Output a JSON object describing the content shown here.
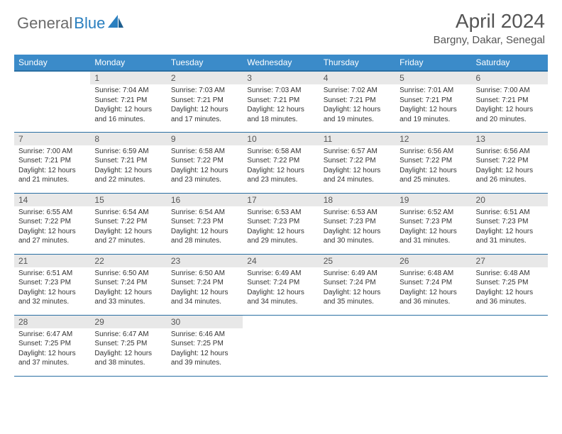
{
  "logo": {
    "text1": "General",
    "text2": "Blue"
  },
  "title": "April 2024",
  "location": "Bargny, Dakar, Senegal",
  "header_bg": "#3b8bc9",
  "header_rule": "#2a6fa3",
  "daynum_bg": "#e8e8e8",
  "weekdays": [
    "Sunday",
    "Monday",
    "Tuesday",
    "Wednesday",
    "Thursday",
    "Friday",
    "Saturday"
  ],
  "weeks": [
    [
      null,
      {
        "n": "1",
        "sr": "7:04 AM",
        "ss": "7:21 PM",
        "dl": "12 hours and 16 minutes."
      },
      {
        "n": "2",
        "sr": "7:03 AM",
        "ss": "7:21 PM",
        "dl": "12 hours and 17 minutes."
      },
      {
        "n": "3",
        "sr": "7:03 AM",
        "ss": "7:21 PM",
        "dl": "12 hours and 18 minutes."
      },
      {
        "n": "4",
        "sr": "7:02 AM",
        "ss": "7:21 PM",
        "dl": "12 hours and 19 minutes."
      },
      {
        "n": "5",
        "sr": "7:01 AM",
        "ss": "7:21 PM",
        "dl": "12 hours and 19 minutes."
      },
      {
        "n": "6",
        "sr": "7:00 AM",
        "ss": "7:21 PM",
        "dl": "12 hours and 20 minutes."
      }
    ],
    [
      {
        "n": "7",
        "sr": "7:00 AM",
        "ss": "7:21 PM",
        "dl": "12 hours and 21 minutes."
      },
      {
        "n": "8",
        "sr": "6:59 AM",
        "ss": "7:21 PM",
        "dl": "12 hours and 22 minutes."
      },
      {
        "n": "9",
        "sr": "6:58 AM",
        "ss": "7:22 PM",
        "dl": "12 hours and 23 minutes."
      },
      {
        "n": "10",
        "sr": "6:58 AM",
        "ss": "7:22 PM",
        "dl": "12 hours and 23 minutes."
      },
      {
        "n": "11",
        "sr": "6:57 AM",
        "ss": "7:22 PM",
        "dl": "12 hours and 24 minutes."
      },
      {
        "n": "12",
        "sr": "6:56 AM",
        "ss": "7:22 PM",
        "dl": "12 hours and 25 minutes."
      },
      {
        "n": "13",
        "sr": "6:56 AM",
        "ss": "7:22 PM",
        "dl": "12 hours and 26 minutes."
      }
    ],
    [
      {
        "n": "14",
        "sr": "6:55 AM",
        "ss": "7:22 PM",
        "dl": "12 hours and 27 minutes."
      },
      {
        "n": "15",
        "sr": "6:54 AM",
        "ss": "7:22 PM",
        "dl": "12 hours and 27 minutes."
      },
      {
        "n": "16",
        "sr": "6:54 AM",
        "ss": "7:23 PM",
        "dl": "12 hours and 28 minutes."
      },
      {
        "n": "17",
        "sr": "6:53 AM",
        "ss": "7:23 PM",
        "dl": "12 hours and 29 minutes."
      },
      {
        "n": "18",
        "sr": "6:53 AM",
        "ss": "7:23 PM",
        "dl": "12 hours and 30 minutes."
      },
      {
        "n": "19",
        "sr": "6:52 AM",
        "ss": "7:23 PM",
        "dl": "12 hours and 31 minutes."
      },
      {
        "n": "20",
        "sr": "6:51 AM",
        "ss": "7:23 PM",
        "dl": "12 hours and 31 minutes."
      }
    ],
    [
      {
        "n": "21",
        "sr": "6:51 AM",
        "ss": "7:23 PM",
        "dl": "12 hours and 32 minutes."
      },
      {
        "n": "22",
        "sr": "6:50 AM",
        "ss": "7:24 PM",
        "dl": "12 hours and 33 minutes."
      },
      {
        "n": "23",
        "sr": "6:50 AM",
        "ss": "7:24 PM",
        "dl": "12 hours and 34 minutes."
      },
      {
        "n": "24",
        "sr": "6:49 AM",
        "ss": "7:24 PM",
        "dl": "12 hours and 34 minutes."
      },
      {
        "n": "25",
        "sr": "6:49 AM",
        "ss": "7:24 PM",
        "dl": "12 hours and 35 minutes."
      },
      {
        "n": "26",
        "sr": "6:48 AM",
        "ss": "7:24 PM",
        "dl": "12 hours and 36 minutes."
      },
      {
        "n": "27",
        "sr": "6:48 AM",
        "ss": "7:25 PM",
        "dl": "12 hours and 36 minutes."
      }
    ],
    [
      {
        "n": "28",
        "sr": "6:47 AM",
        "ss": "7:25 PM",
        "dl": "12 hours and 37 minutes."
      },
      {
        "n": "29",
        "sr": "6:47 AM",
        "ss": "7:25 PM",
        "dl": "12 hours and 38 minutes."
      },
      {
        "n": "30",
        "sr": "6:46 AM",
        "ss": "7:25 PM",
        "dl": "12 hours and 39 minutes."
      },
      null,
      null,
      null,
      null
    ]
  ],
  "labels": {
    "sunrise": "Sunrise:",
    "sunset": "Sunset:",
    "daylight": "Daylight:"
  }
}
